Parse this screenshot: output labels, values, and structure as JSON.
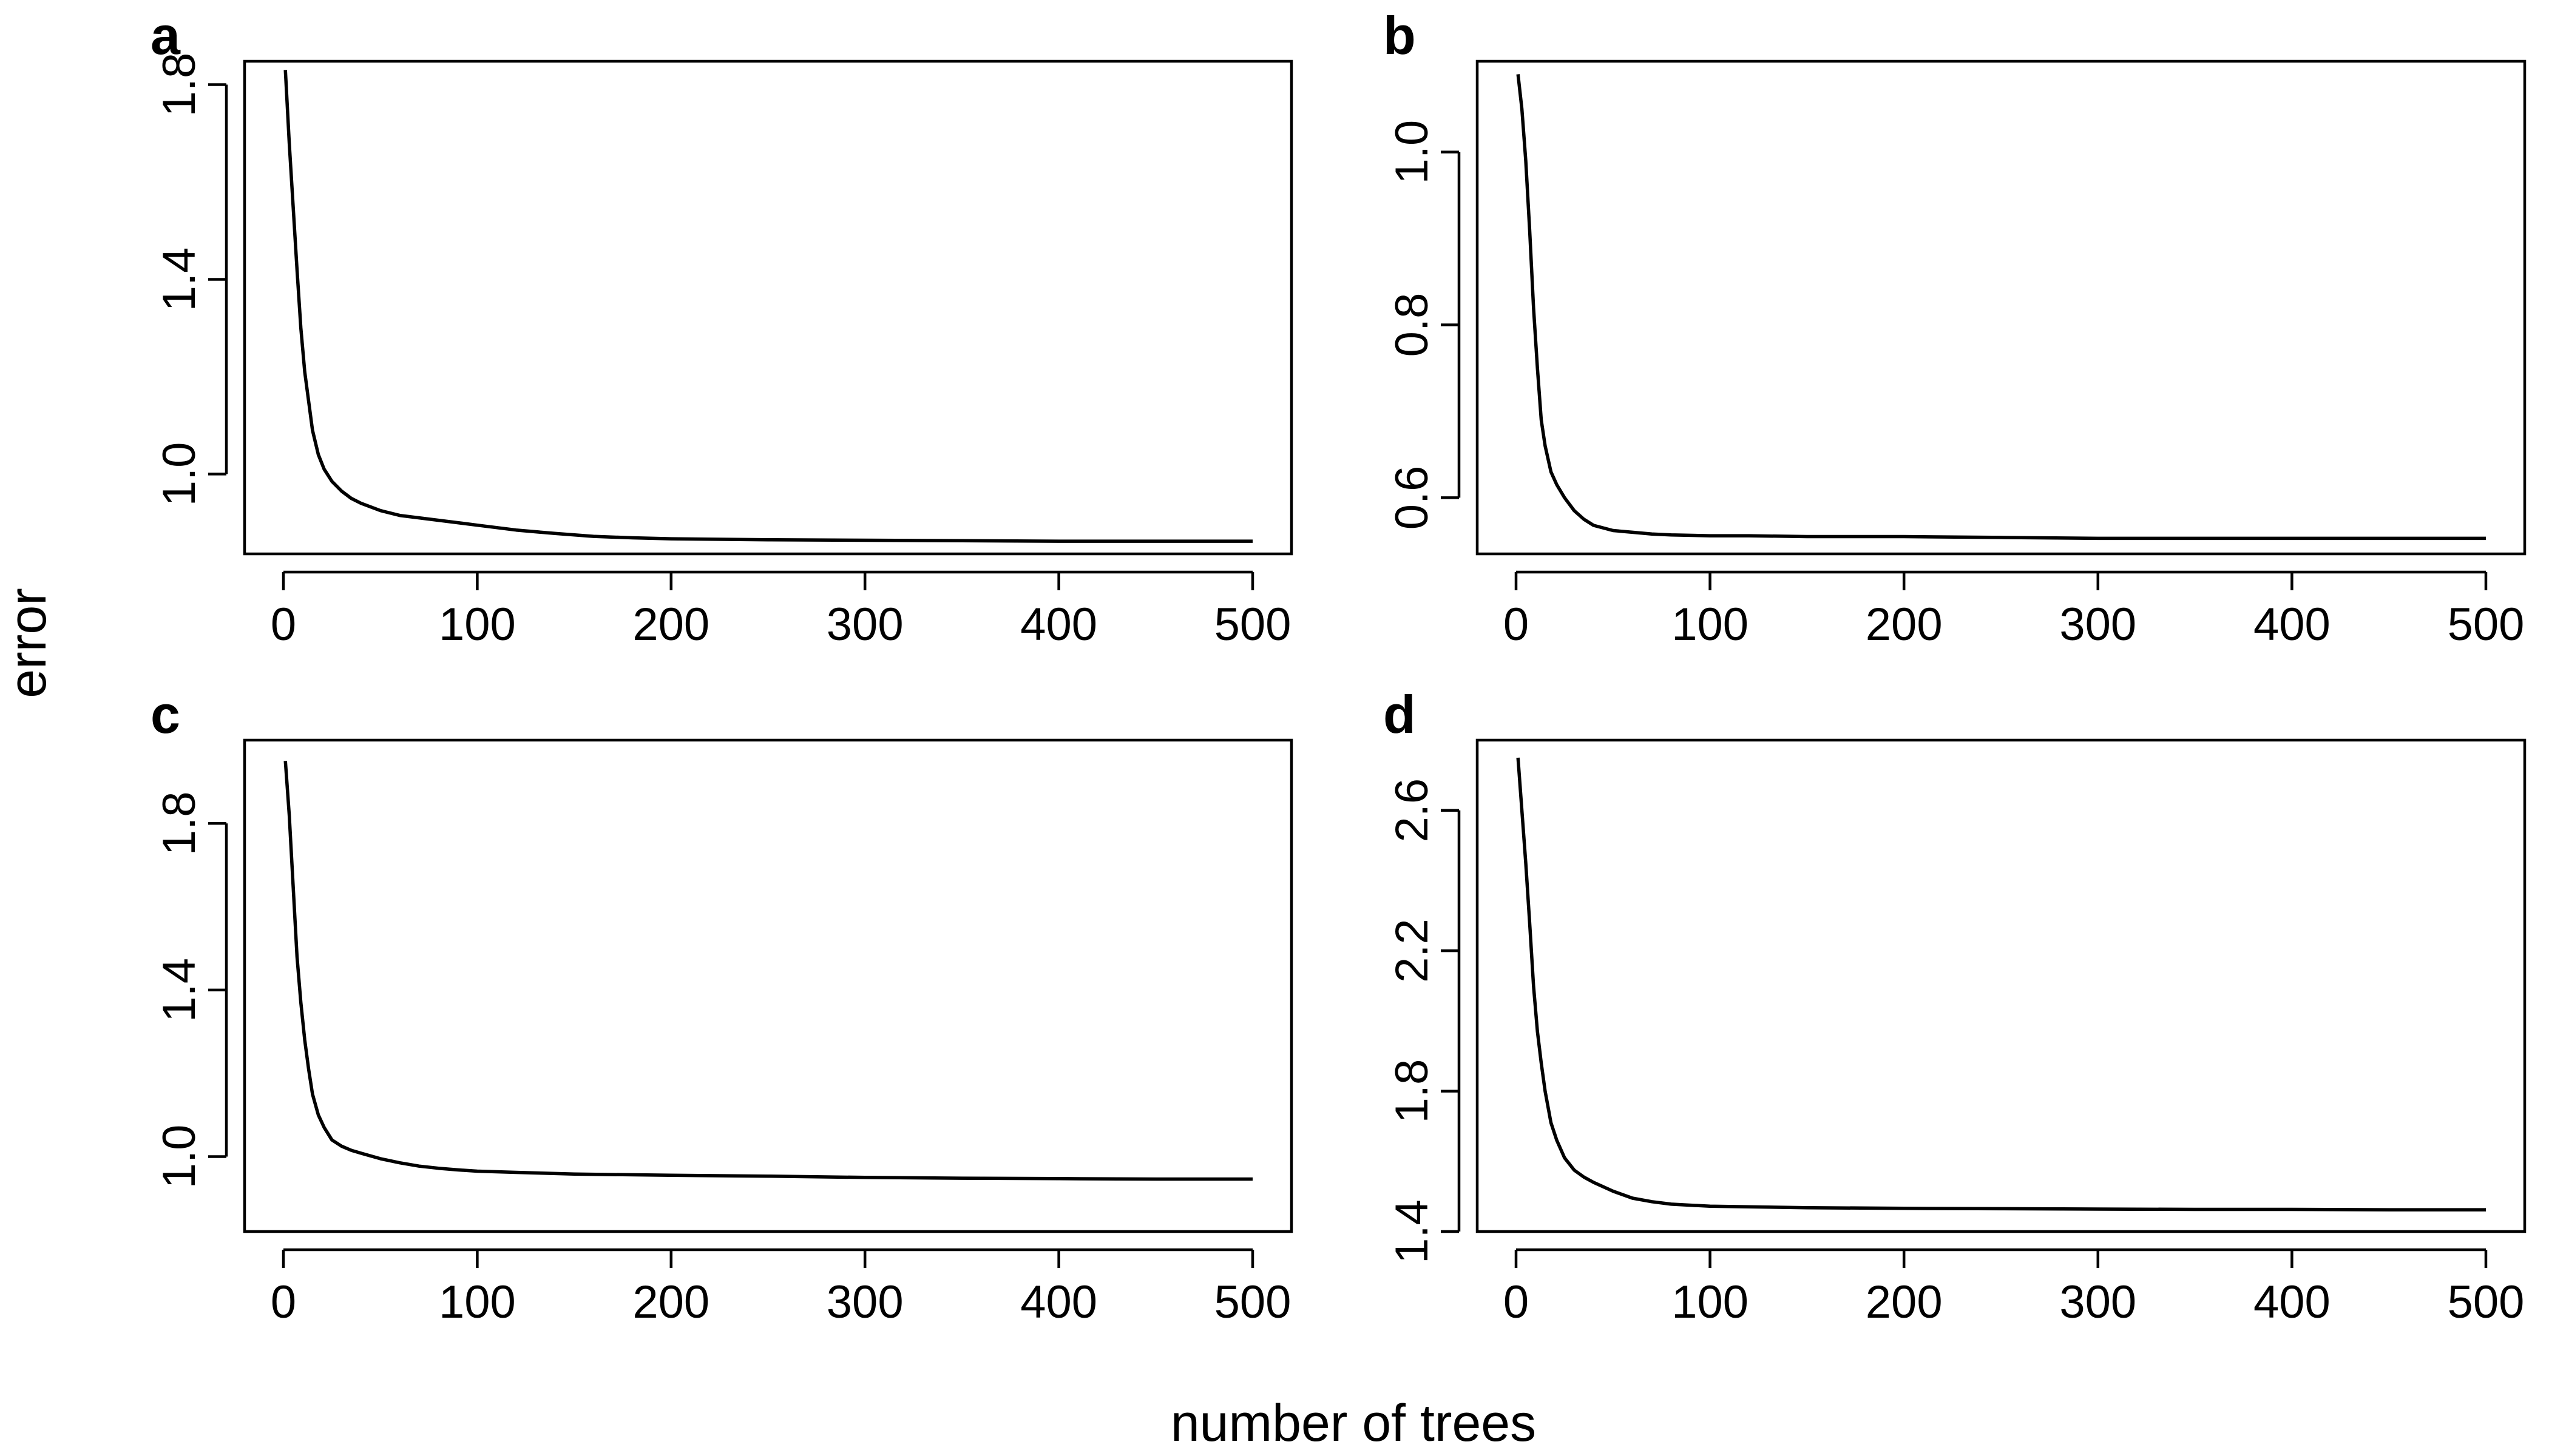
{
  "figure": {
    "xlabel": "number of trees",
    "ylabel": "error"
  },
  "chart_data": [
    {
      "type": "line",
      "panel_label": "a",
      "xlim": [
        0,
        500
      ],
      "ylim": [
        0.836,
        1.848
      ],
      "xticks": [
        0,
        100,
        200,
        300,
        400,
        500
      ],
      "xtick_labels": [
        "0",
        "100",
        "200",
        "300",
        "400",
        "500"
      ],
      "yticks": [
        1.0,
        1.4,
        1.8
      ],
      "ytick_labels": [
        "1.0",
        "1.4",
        "1.8"
      ],
      "grid": false,
      "series": [
        {
          "x": [
            1,
            3,
            5,
            7,
            9,
            11,
            13,
            15,
            18,
            21,
            25,
            30,
            35,
            40,
            50,
            60,
            70,
            80,
            90,
            100,
            120,
            140,
            160,
            180,
            200,
            250,
            300,
            350,
            400,
            450,
            500
          ],
          "y": [
            1.83,
            1.68,
            1.55,
            1.42,
            1.3,
            1.21,
            1.15,
            1.09,
            1.04,
            1.01,
            0.985,
            0.965,
            0.95,
            0.94,
            0.925,
            0.915,
            0.91,
            0.905,
            0.9,
            0.895,
            0.885,
            0.878,
            0.872,
            0.869,
            0.867,
            0.865,
            0.864,
            0.863,
            0.862,
            0.862,
            0.862
          ]
        }
      ]
    },
    {
      "type": "line",
      "panel_label": "b",
      "xlim": [
        0,
        500
      ],
      "ylim": [
        0.535,
        1.105
      ],
      "xticks": [
        0,
        100,
        200,
        300,
        400,
        500
      ],
      "xtick_labels": [
        "0",
        "100",
        "200",
        "300",
        "400",
        "500"
      ],
      "yticks": [
        0.6,
        0.8,
        1.0
      ],
      "ytick_labels": [
        "0.6",
        "0.8",
        "1.0"
      ],
      "grid": false,
      "series": [
        {
          "x": [
            1,
            3,
            5,
            7,
            9,
            11,
            13,
            15,
            18,
            21,
            25,
            30,
            35,
            40,
            50,
            60,
            70,
            80,
            100,
            120,
            150,
            200,
            250,
            300,
            350,
            400,
            450,
            500
          ],
          "y": [
            1.09,
            1.05,
            0.99,
            0.91,
            0.82,
            0.75,
            0.69,
            0.66,
            0.63,
            0.615,
            0.6,
            0.585,
            0.575,
            0.568,
            0.562,
            0.56,
            0.558,
            0.557,
            0.556,
            0.556,
            0.555,
            0.555,
            0.554,
            0.553,
            0.553,
            0.553,
            0.553,
            0.553
          ]
        }
      ]
    },
    {
      "type": "line",
      "panel_label": "c",
      "xlim": [
        0,
        500
      ],
      "ylim": [
        0.82,
        2.0
      ],
      "xticks": [
        0,
        100,
        200,
        300,
        400,
        500
      ],
      "xtick_labels": [
        "0",
        "100",
        "200",
        "300",
        "400",
        "500"
      ],
      "yticks": [
        1.0,
        1.4,
        1.8
      ],
      "ytick_labels": [
        "1.0",
        "1.4",
        "1.8"
      ],
      "grid": false,
      "series": [
        {
          "x": [
            1,
            3,
            5,
            7,
            9,
            11,
            13,
            15,
            18,
            21,
            25,
            30,
            35,
            40,
            50,
            60,
            70,
            80,
            90,
            100,
            120,
            150,
            200,
            250,
            300,
            350,
            400,
            450,
            500
          ],
          "y": [
            1.95,
            1.82,
            1.65,
            1.48,
            1.37,
            1.28,
            1.21,
            1.15,
            1.1,
            1.07,
            1.04,
            1.025,
            1.015,
            1.008,
            0.995,
            0.985,
            0.977,
            0.972,
            0.968,
            0.965,
            0.962,
            0.958,
            0.955,
            0.953,
            0.95,
            0.948,
            0.947,
            0.946,
            0.946
          ]
        }
      ]
    },
    {
      "type": "line",
      "panel_label": "d",
      "xlim": [
        0,
        500
      ],
      "ylim": [
        1.4,
        2.8
      ],
      "xticks": [
        0,
        100,
        200,
        300,
        400,
        500
      ],
      "xtick_labels": [
        "0",
        "100",
        "200",
        "300",
        "400",
        "500"
      ],
      "yticks": [
        1.4,
        1.8,
        2.2,
        2.6
      ],
      "ytick_labels": [
        "1.4",
        "1.8",
        "2.2",
        "2.6"
      ],
      "grid": false,
      "series": [
        {
          "x": [
            1,
            3,
            5,
            7,
            9,
            11,
            13,
            15,
            18,
            21,
            25,
            30,
            35,
            40,
            50,
            60,
            70,
            80,
            100,
            150,
            200,
            250,
            300,
            350,
            400,
            450,
            500
          ],
          "y": [
            2.75,
            2.6,
            2.45,
            2.28,
            2.1,
            1.97,
            1.88,
            1.8,
            1.71,
            1.66,
            1.61,
            1.575,
            1.555,
            1.54,
            1.515,
            1.495,
            1.485,
            1.478,
            1.472,
            1.468,
            1.466,
            1.465,
            1.464,
            1.463,
            1.463,
            1.462,
            1.462
          ]
        }
      ]
    }
  ]
}
